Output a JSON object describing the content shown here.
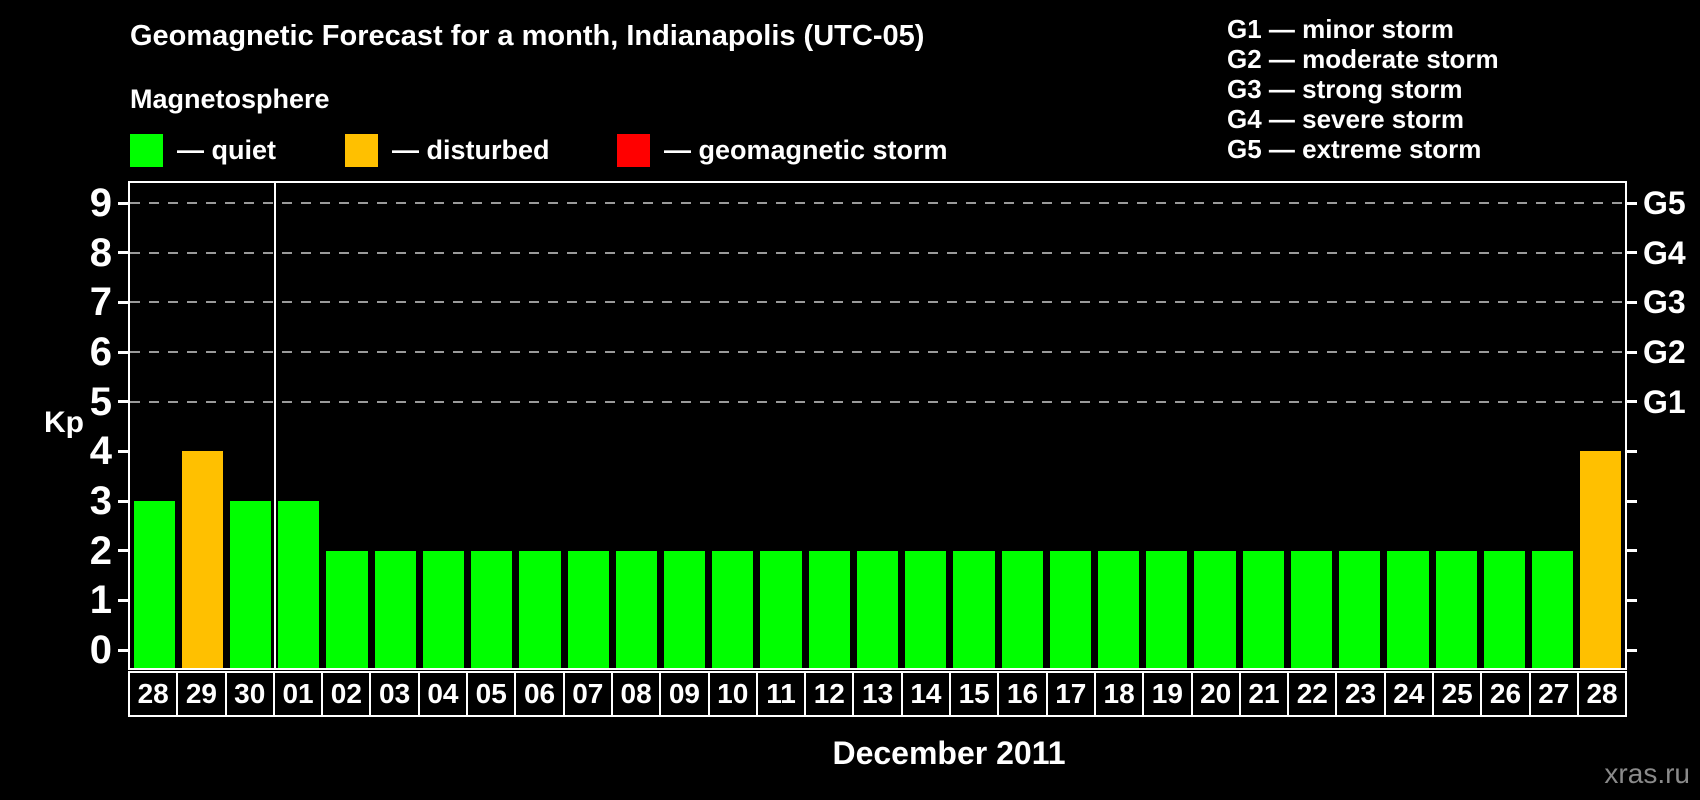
{
  "header": {
    "title": "Geomagnetic Forecast for a month, Indianapolis (UTC-05)",
    "subtitle": "Magnetosphere"
  },
  "legend": {
    "items": [
      {
        "status": "quiet",
        "label": "— quiet",
        "color": "#00ff00"
      },
      {
        "status": "disturbed",
        "label": "— disturbed",
        "color": "#ffc000"
      },
      {
        "status": "storm",
        "label": "— geomagnetic storm",
        "color": "#ff0000"
      }
    ]
  },
  "g_legend": [
    "G1 — minor storm",
    "G2 — moderate storm",
    "G3 — strong storm",
    "G4 — severe storm",
    "G5 — extreme storm"
  ],
  "axes": {
    "y_label": "Kp",
    "y_ticks": [
      0,
      1,
      2,
      3,
      4,
      5,
      6,
      7,
      8,
      9
    ],
    "g_scale": [
      {
        "kp": 5,
        "label": "G1"
      },
      {
        "kp": 6,
        "label": "G2"
      },
      {
        "kp": 7,
        "label": "G3"
      },
      {
        "kp": 8,
        "label": "G4"
      },
      {
        "kp": 9,
        "label": "G5"
      }
    ],
    "x_title": "December 2011"
  },
  "watermark": "xras.ru",
  "chart_data": {
    "type": "bar",
    "title": "Geomagnetic Forecast for a month, Indianapolis (UTC-05)",
    "xlabel": "December 2011",
    "ylabel": "Kp",
    "ylim": [
      -0.4,
      9.4
    ],
    "grid": "horizontal dashed lines at Kp 5..9 (G1..G5)",
    "gridlines_at": [
      5,
      6,
      7,
      8,
      9
    ],
    "legend_position": "top",
    "categories": [
      "28",
      "29",
      "30",
      "01",
      "02",
      "03",
      "04",
      "05",
      "06",
      "07",
      "08",
      "09",
      "10",
      "11",
      "12",
      "13",
      "14",
      "15",
      "16",
      "17",
      "18",
      "19",
      "20",
      "21",
      "22",
      "23",
      "24",
      "25",
      "26",
      "27",
      "28"
    ],
    "values": [
      3,
      4,
      3,
      3,
      2,
      2,
      2,
      2,
      2,
      2,
      2,
      2,
      2,
      2,
      2,
      2,
      2,
      2,
      2,
      2,
      2,
      2,
      2,
      2,
      2,
      2,
      2,
      2,
      2,
      2,
      4
    ],
    "statuses": [
      "quiet",
      "disturbed",
      "quiet",
      "quiet",
      "quiet",
      "quiet",
      "quiet",
      "quiet",
      "quiet",
      "quiet",
      "quiet",
      "quiet",
      "quiet",
      "quiet",
      "quiet",
      "quiet",
      "quiet",
      "quiet",
      "quiet",
      "quiet",
      "quiet",
      "quiet",
      "quiet",
      "quiet",
      "quiet",
      "quiet",
      "quiet",
      "quiet",
      "quiet",
      "quiet",
      "disturbed"
    ],
    "status_colors": {
      "quiet": "#00ff00",
      "disturbed": "#ffc000",
      "storm": "#ff0000"
    },
    "separator_after_index": 2
  }
}
